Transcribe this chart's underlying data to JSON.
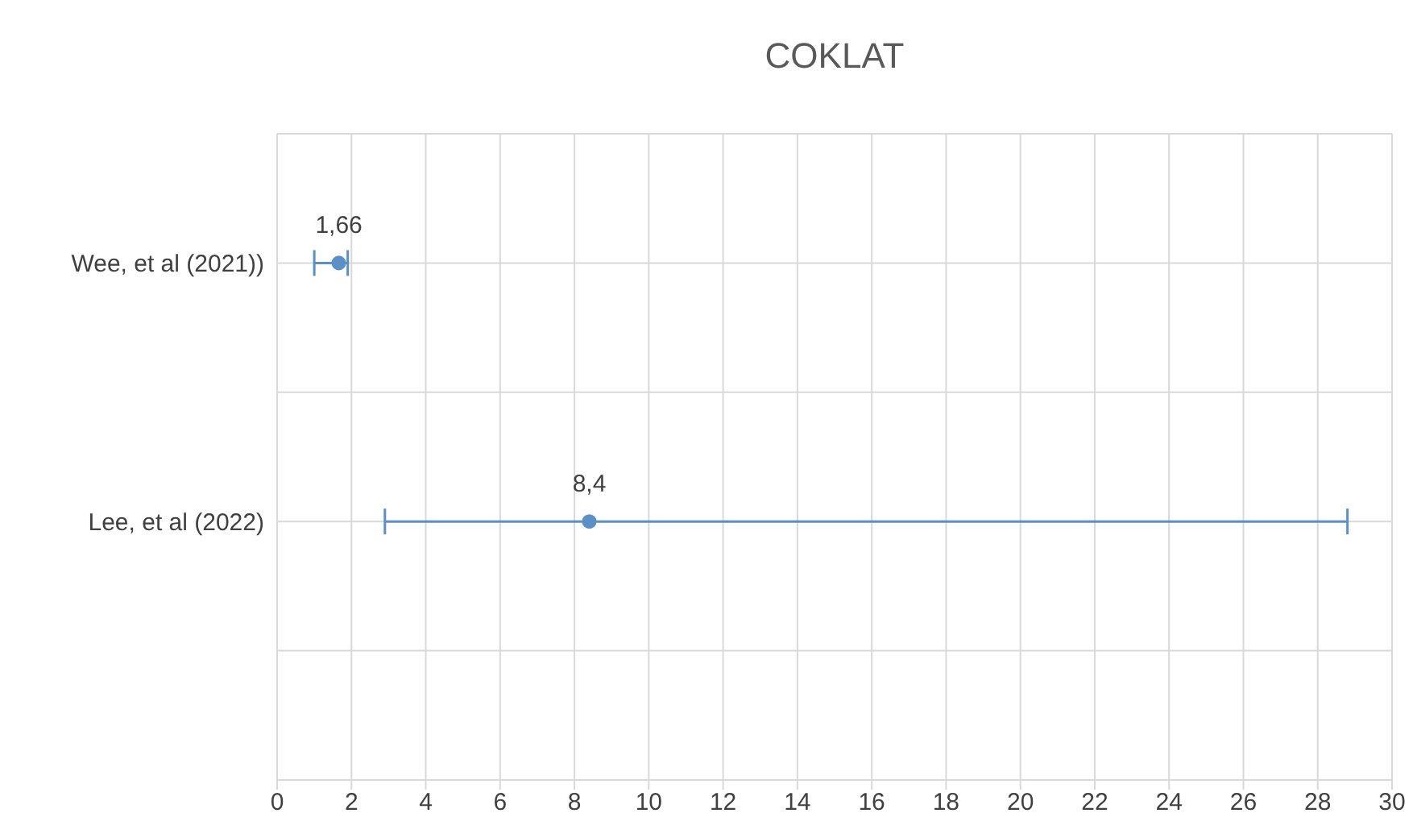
{
  "chart_data": {
    "type": "scatter",
    "title": "COKLAT",
    "orientation": "horizontal",
    "categories": [
      "Wee, et al (2021))",
      "Lee, et al (2022)"
    ],
    "values": [
      1.66,
      8.4
    ],
    "errors": [
      [
        1.0,
        1.9
      ],
      [
        2.9,
        28.8
      ]
    ],
    "value_labels": [
      "1,66",
      "8,4"
    ],
    "color": "#5b8fc7",
    "xlim": [
      0,
      30
    ],
    "xticks": [
      0,
      2,
      4,
      6,
      8,
      10,
      12,
      14,
      16,
      18,
      20,
      22,
      24,
      26,
      28,
      30
    ],
    "grid": true,
    "marker": "circle"
  }
}
